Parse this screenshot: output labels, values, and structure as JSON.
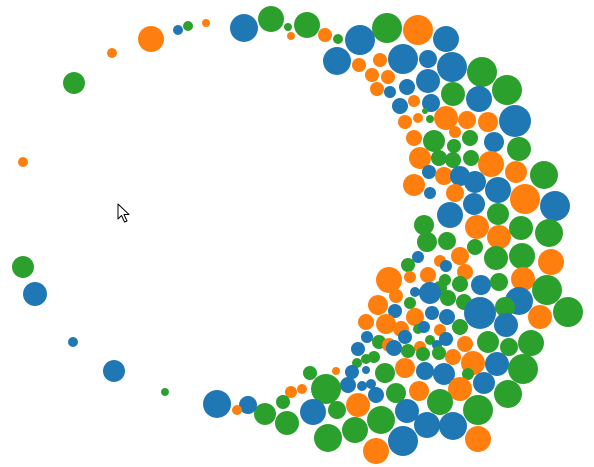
{
  "colors": {
    "blue": "#1f77b4",
    "orange": "#ff7f0e",
    "green": "#2ca02c"
  },
  "icons": {
    "cursor": "mouse-pointer-icon"
  },
  "chart_data": {
    "type": "scatter",
    "kind": "packed-bubble-crescent",
    "title": "",
    "xlabel": "",
    "ylabel": "",
    "legend": "none",
    "grid": false,
    "axes": false,
    "color_categories": [
      "blue",
      "orange",
      "green"
    ],
    "columns": [
      "x",
      "y",
      "r",
      "color"
    ],
    "points": [
      [
        244,
        28,
        14,
        "b"
      ],
      [
        271,
        19,
        13,
        "g"
      ],
      [
        307,
        25,
        13,
        "g"
      ],
      [
        288,
        27,
        4,
        "g"
      ],
      [
        291,
        36,
        4,
        "o"
      ],
      [
        325,
        35,
        7,
        "o"
      ],
      [
        338,
        39,
        5,
        "g"
      ],
      [
        360,
        40,
        15,
        "b"
      ],
      [
        387,
        28,
        15,
        "g"
      ],
      [
        418,
        30,
        15,
        "o"
      ],
      [
        446,
        39,
        13,
        "b"
      ],
      [
        337,
        61,
        14,
        "b"
      ],
      [
        359,
        65,
        7,
        "o"
      ],
      [
        380,
        60,
        7,
        "o"
      ],
      [
        403,
        59,
        15,
        "b"
      ],
      [
        428,
        59,
        9,
        "b"
      ],
      [
        452,
        67,
        15,
        "b"
      ],
      [
        482,
        72,
        15,
        "g"
      ],
      [
        372,
        75,
        7,
        "o"
      ],
      [
        388,
        77,
        7,
        "o"
      ],
      [
        428,
        81,
        12,
        "b"
      ],
      [
        407,
        87,
        8,
        "b"
      ],
      [
        377,
        89,
        7,
        "o"
      ],
      [
        390,
        92,
        6,
        "b"
      ],
      [
        414,
        101,
        6,
        "o"
      ],
      [
        400,
        106,
        8,
        "b"
      ],
      [
        431,
        103,
        9,
        "b"
      ],
      [
        453,
        94,
        12,
        "g"
      ],
      [
        479,
        99,
        13,
        "b"
      ],
      [
        507,
        90,
        15,
        "g"
      ],
      [
        418,
        118,
        5,
        "o"
      ],
      [
        425,
        111,
        3,
        "g"
      ],
      [
        405,
        122,
        7,
        "o"
      ],
      [
        430,
        119,
        4,
        "g"
      ],
      [
        446,
        118,
        12,
        "o"
      ],
      [
        467,
        120,
        9,
        "o"
      ],
      [
        488,
        122,
        10,
        "o"
      ],
      [
        515,
        121,
        16,
        "b"
      ],
      [
        414,
        138,
        8,
        "o"
      ],
      [
        434,
        141,
        11,
        "g"
      ],
      [
        455,
        132,
        6,
        "o"
      ],
      [
        470,
        138,
        8,
        "g"
      ],
      [
        494,
        142,
        10,
        "b"
      ],
      [
        420,
        158,
        11,
        "o"
      ],
      [
        439,
        158,
        8,
        "g"
      ],
      [
        454,
        146,
        7,
        "g"
      ],
      [
        453,
        160,
        8,
        "g"
      ],
      [
        471,
        158,
        8,
        "g"
      ],
      [
        491,
        164,
        13,
        "o"
      ],
      [
        519,
        149,
        12,
        "g"
      ],
      [
        414,
        185,
        11,
        "o"
      ],
      [
        429,
        172,
        7,
        "b"
      ],
      [
        444,
        176,
        9,
        "o"
      ],
      [
        460,
        176,
        10,
        "b"
      ],
      [
        475,
        182,
        11,
        "b"
      ],
      [
        498,
        190,
        13,
        "b"
      ],
      [
        516,
        172,
        11,
        "o"
      ],
      [
        544,
        175,
        14,
        "g"
      ],
      [
        430,
        193,
        6,
        "b"
      ],
      [
        455,
        193,
        9,
        "o"
      ],
      [
        450,
        215,
        13,
        "b"
      ],
      [
        474,
        204,
        11,
        "b"
      ],
      [
        498,
        214,
        11,
        "g"
      ],
      [
        525,
        199,
        15,
        "o"
      ],
      [
        555,
        206,
        15,
        "b"
      ],
      [
        424,
        225,
        10,
        "g"
      ],
      [
        447,
        241,
        9,
        "g"
      ],
      [
        477,
        227,
        12,
        "o"
      ],
      [
        499,
        237,
        12,
        "o"
      ],
      [
        521,
        228,
        12,
        "g"
      ],
      [
        549,
        233,
        14,
        "g"
      ],
      [
        427,
        242,
        10,
        "g"
      ],
      [
        418,
        257,
        6,
        "b"
      ],
      [
        440,
        261,
        6,
        "o"
      ],
      [
        460,
        256,
        9,
        "o"
      ],
      [
        475,
        247,
        8,
        "g"
      ],
      [
        496,
        258,
        12,
        "g"
      ],
      [
        522,
        256,
        13,
        "g"
      ],
      [
        551,
        262,
        13,
        "o"
      ],
      [
        408,
        265,
        7,
        "g"
      ],
      [
        446,
        266,
        6,
        "b"
      ],
      [
        428,
        275,
        8,
        "o"
      ],
      [
        445,
        280,
        6,
        "g"
      ],
      [
        465,
        272,
        8,
        "o"
      ],
      [
        389,
        280,
        13,
        "o"
      ],
      [
        410,
        277,
        6,
        "o"
      ],
      [
        440,
        288,
        7,
        "g"
      ],
      [
        460,
        284,
        8,
        "g"
      ],
      [
        481,
        285,
        10,
        "b"
      ],
      [
        499,
        282,
        9,
        "g"
      ],
      [
        523,
        279,
        12,
        "o"
      ],
      [
        547,
        290,
        15,
        "g"
      ],
      [
        396,
        296,
        7,
        "o"
      ],
      [
        415,
        292,
        5,
        "b"
      ],
      [
        430,
        293,
        11,
        "b"
      ],
      [
        448,
        298,
        8,
        "g"
      ],
      [
        464,
        302,
        8,
        "g"
      ],
      [
        519,
        301,
        14,
        "b"
      ],
      [
        378,
        305,
        10,
        "o"
      ],
      [
        395,
        311,
        7,
        "b"
      ],
      [
        410,
        303,
        6,
        "g"
      ],
      [
        415,
        317,
        9,
        "o"
      ],
      [
        432,
        313,
        7,
        "b"
      ],
      [
        447,
        317,
        8,
        "b"
      ],
      [
        480,
        313,
        16,
        "b"
      ],
      [
        505,
        307,
        10,
        "g"
      ],
      [
        568,
        312,
        15,
        "g"
      ],
      [
        366,
        322,
        8,
        "o"
      ],
      [
        386,
        324,
        10,
        "o"
      ],
      [
        401,
        329,
        8,
        "o"
      ],
      [
        418,
        329,
        5,
        "g"
      ],
      [
        424,
        327,
        6,
        "b"
      ],
      [
        440,
        330,
        6,
        "o"
      ],
      [
        460,
        327,
        8,
        "g"
      ],
      [
        506,
        325,
        12,
        "b"
      ],
      [
        540,
        317,
        12,
        "o"
      ],
      [
        367,
        337,
        6,
        "b"
      ],
      [
        379,
        342,
        7,
        "g"
      ],
      [
        389,
        345,
        7,
        "o"
      ],
      [
        405,
        337,
        7,
        "b"
      ],
      [
        420,
        347,
        6,
        "o"
      ],
      [
        430,
        340,
        5,
        "g"
      ],
      [
        437,
        345,
        5,
        "b"
      ],
      [
        446,
        339,
        7,
        "b"
      ],
      [
        465,
        344,
        8,
        "o"
      ],
      [
        488,
        342,
        11,
        "g"
      ],
      [
        509,
        347,
        9,
        "g"
      ],
      [
        531,
        343,
        13,
        "g"
      ],
      [
        358,
        349,
        7,
        "b"
      ],
      [
        366,
        359,
        5,
        "g"
      ],
      [
        374,
        357,
        6,
        "g"
      ],
      [
        394,
        348,
        8,
        "b"
      ],
      [
        408,
        351,
        7,
        "g"
      ],
      [
        423,
        354,
        7,
        "g"
      ],
      [
        439,
        353,
        7,
        "g"
      ],
      [
        453,
        357,
        8,
        "o"
      ],
      [
        473,
        363,
        12,
        "o"
      ],
      [
        497,
        364,
        12,
        "b"
      ],
      [
        357,
        363,
        5,
        "g"
      ],
      [
        352,
        372,
        7,
        "b"
      ],
      [
        366,
        370,
        4,
        "b"
      ],
      [
        385,
        373,
        10,
        "g"
      ],
      [
        405,
        368,
        10,
        "o"
      ],
      [
        425,
        371,
        9,
        "b"
      ],
      [
        444,
        374,
        11,
        "b"
      ],
      [
        468,
        374,
        6,
        "g"
      ],
      [
        484,
        383,
        11,
        "b"
      ],
      [
        523,
        369,
        15,
        "g"
      ],
      [
        310,
        373,
        7,
        "g"
      ],
      [
        336,
        371,
        4,
        "o"
      ],
      [
        371,
        384,
        5,
        "b"
      ],
      [
        348,
        385,
        8,
        "b"
      ],
      [
        362,
        386,
        5,
        "b"
      ],
      [
        376,
        395,
        8,
        "b"
      ],
      [
        396,
        393,
        10,
        "g"
      ],
      [
        419,
        391,
        10,
        "o"
      ],
      [
        460,
        389,
        12,
        "o"
      ],
      [
        508,
        394,
        14,
        "g"
      ],
      [
        326,
        389,
        15,
        "g"
      ],
      [
        291,
        392,
        6,
        "o"
      ],
      [
        302,
        389,
        5,
        "o"
      ],
      [
        283,
        402,
        7,
        "g"
      ],
      [
        358,
        405,
        12,
        "o"
      ],
      [
        440,
        402,
        13,
        "g"
      ],
      [
        313,
        412,
        13,
        "b"
      ],
      [
        337,
        410,
        9,
        "g"
      ],
      [
        381,
        420,
        14,
        "g"
      ],
      [
        407,
        411,
        12,
        "b"
      ],
      [
        478,
        410,
        15,
        "g"
      ],
      [
        265,
        414,
        11,
        "g"
      ],
      [
        287,
        423,
        12,
        "g"
      ],
      [
        355,
        430,
        13,
        "g"
      ],
      [
        427,
        425,
        13,
        "b"
      ],
      [
        453,
        426,
        14,
        "b"
      ],
      [
        328,
        438,
        14,
        "g"
      ],
      [
        403,
        441,
        15,
        "b"
      ],
      [
        478,
        439,
        13,
        "o"
      ],
      [
        376,
        451,
        13,
        "o"
      ],
      [
        248,
        405,
        9,
        "b"
      ],
      [
        237,
        410,
        5,
        "o"
      ],
      [
        217,
        404,
        14,
        "b"
      ],
      [
        165,
        392,
        4,
        "g"
      ],
      [
        114,
        371,
        11,
        "b"
      ],
      [
        73,
        342,
        5,
        "b"
      ],
      [
        35,
        294,
        12,
        "b"
      ],
      [
        23,
        267,
        11,
        "g"
      ],
      [
        23,
        162,
        5,
        "o"
      ],
      [
        74,
        83,
        11,
        "g"
      ],
      [
        112,
        53,
        5,
        "o"
      ],
      [
        151,
        39,
        13,
        "o"
      ],
      [
        178,
        30,
        5,
        "b"
      ],
      [
        188,
        26,
        5,
        "g"
      ],
      [
        206,
        23,
        4,
        "o"
      ]
    ]
  }
}
